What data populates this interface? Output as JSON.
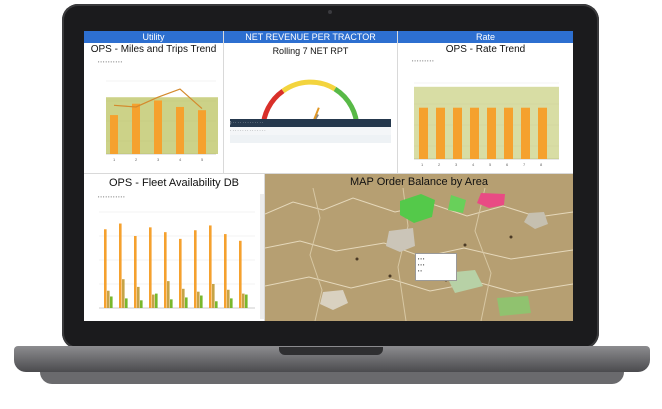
{
  "dashboard": {
    "headers": [
      "Utility",
      "NET REVENUE PER TRACTOR",
      "Rate"
    ],
    "panels": {
      "miles_trips": {
        "title": "OPS - Miles and Trips Trend"
      },
      "net_rpt": {
        "title": "Rolling 7 NET RPT"
      },
      "rate": {
        "title": "OPS - Rate Trend"
      },
      "fleet": {
        "title": "OPS - Fleet Availability DB"
      },
      "map": {
        "title": "MAP Order Balance by Area"
      }
    }
  },
  "colors": {
    "header_blue": "#2d6fd0",
    "bar_orange": "#f5a12e",
    "olive": "#b8c15a",
    "green": "#78b82c",
    "gauge_red": "#d9302a",
    "gauge_yellow": "#f3d43e",
    "gauge_green": "#58b947",
    "map_tan": "#b69f72"
  },
  "chart_data": [
    {
      "type": "bar",
      "title": "OPS - Miles and Trips Trend",
      "categories": [
        "1",
        "2",
        "3",
        "4",
        "5"
      ],
      "series": [
        {
          "values": [
            24000,
            31000,
            33000,
            29000,
            27000
          ]
        },
        {
          "values": [
            30000,
            29000,
            35000,
            40000,
            28000
          ]
        }
      ],
      "ylim": [
        0,
        45000
      ]
    },
    {
      "type": "gauge",
      "title": "Rolling 7 NET RPT",
      "value": 0.62,
      "range": [
        0,
        1
      ]
    },
    {
      "type": "bar",
      "title": "OPS - Rate Trend",
      "categories": [
        "1",
        "2",
        "3",
        "4",
        "5",
        "6",
        "7",
        "8"
      ],
      "series": [
        {
          "values": [
            1.9,
            1.9,
            1.9,
            1.9,
            1.9,
            1.9,
            1.9,
            1.9
          ]
        },
        {
          "values": [
            1.35,
            1.35,
            1.35,
            1.35,
            1.35,
            1.35,
            1.35,
            1.35
          ]
        }
      ],
      "ylim": [
        0,
        2
      ]
    },
    {
      "type": "bar",
      "title": "OPS - Fleet Availability DB",
      "categories": [
        "1",
        "2",
        "3",
        "4",
        "5",
        "6",
        "7",
        "8",
        "9",
        "10"
      ],
      "series": [
        {
          "values": [
            82,
            88,
            75,
            84,
            79,
            72,
            81,
            86,
            77,
            70
          ]
        },
        {
          "values": [
            18,
            30,
            22,
            14,
            28,
            20,
            17,
            25,
            19,
            15
          ]
        },
        {
          "values": [
            12,
            10,
            8,
            15,
            9,
            11,
            13,
            7,
            10,
            14
          ]
        }
      ],
      "ylim": [
        0,
        100
      ]
    }
  ]
}
